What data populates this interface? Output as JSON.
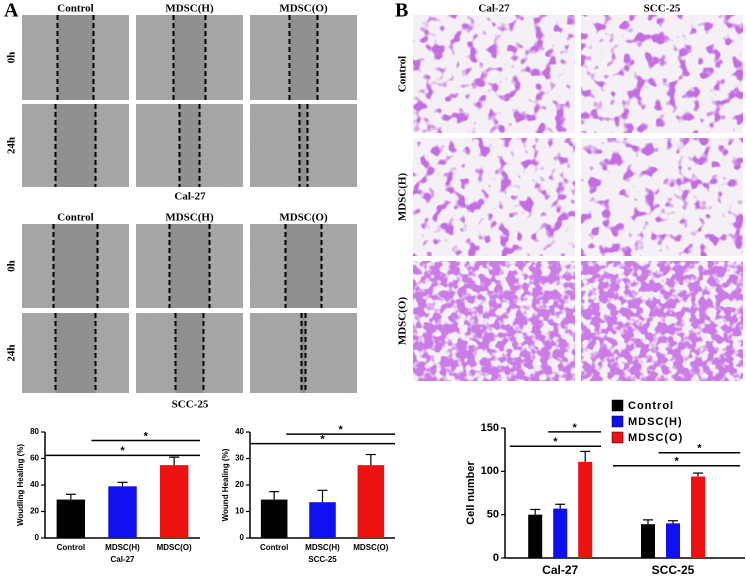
{
  "panel_a": {
    "label": "A",
    "groups": [
      {
        "columns": [
          "Control",
          "MDSC(H)",
          "MDSC(O)"
        ],
        "rows": [
          "0h",
          "24h"
        ],
        "caption": "Cal-27"
      },
      {
        "columns": [
          "Control",
          "MDSC(H)",
          "MDSC(O)"
        ],
        "rows": [
          "0h",
          "24h"
        ],
        "caption": "SCC-25"
      }
    ]
  },
  "panel_b": {
    "label": "B",
    "columns": [
      "Cal-27",
      "SCC-25"
    ],
    "rows": [
      "Control",
      "MDSC(H)",
      "MDSC(O)"
    ]
  },
  "chart_data": [
    {
      "type": "bar",
      "y_label": "Woudling Healing (%)",
      "x_label": "Cal-27",
      "categories": [
        "Control",
        "MDSC(H)",
        "MDSC(O)"
      ],
      "values": [
        29,
        39,
        55
      ],
      "errors": [
        4,
        3,
        6
      ],
      "colors": [
        "#000000",
        "#1010ee",
        "#ee1111"
      ],
      "ylim": [
        0,
        80
      ],
      "yticks": [
        0,
        20,
        40,
        60,
        80
      ],
      "annotations": [
        "*",
        "*"
      ]
    },
    {
      "type": "bar",
      "y_label": "Wound Healing (%)",
      "x_label": "SCC-25",
      "categories": [
        "Control",
        "MDSC(H)",
        "MDSC(O)"
      ],
      "values": [
        14.5,
        13.5,
        27.5
      ],
      "errors": [
        3,
        4.5,
        4
      ],
      "colors": [
        "#000000",
        "#1010ee",
        "#ee1111"
      ],
      "ylim": [
        0,
        40
      ],
      "yticks": [
        0,
        10,
        20,
        30,
        40
      ],
      "annotations": [
        "*",
        "*"
      ]
    },
    {
      "type": "grouped-bar",
      "y_label": "Cell number",
      "categories": [
        "Cal-27",
        "SCC-25"
      ],
      "series": [
        {
          "name": "Control",
          "color": "#000000",
          "values": [
            50,
            39
          ],
          "errors": [
            6,
            5
          ]
        },
        {
          "name": "MDSC(H)",
          "color": "#1010ee",
          "values": [
            57,
            40
          ],
          "errors": [
            5,
            3
          ]
        },
        {
          "name": "MDSC(O)",
          "color": "#ee1111",
          "values": [
            111,
            94
          ],
          "errors": [
            12,
            4
          ]
        }
      ],
      "ylim": [
        0,
        150
      ],
      "yticks": [
        0,
        50,
        100,
        150
      ],
      "annotations": [
        "*",
        "*",
        "*",
        "*"
      ]
    }
  ]
}
